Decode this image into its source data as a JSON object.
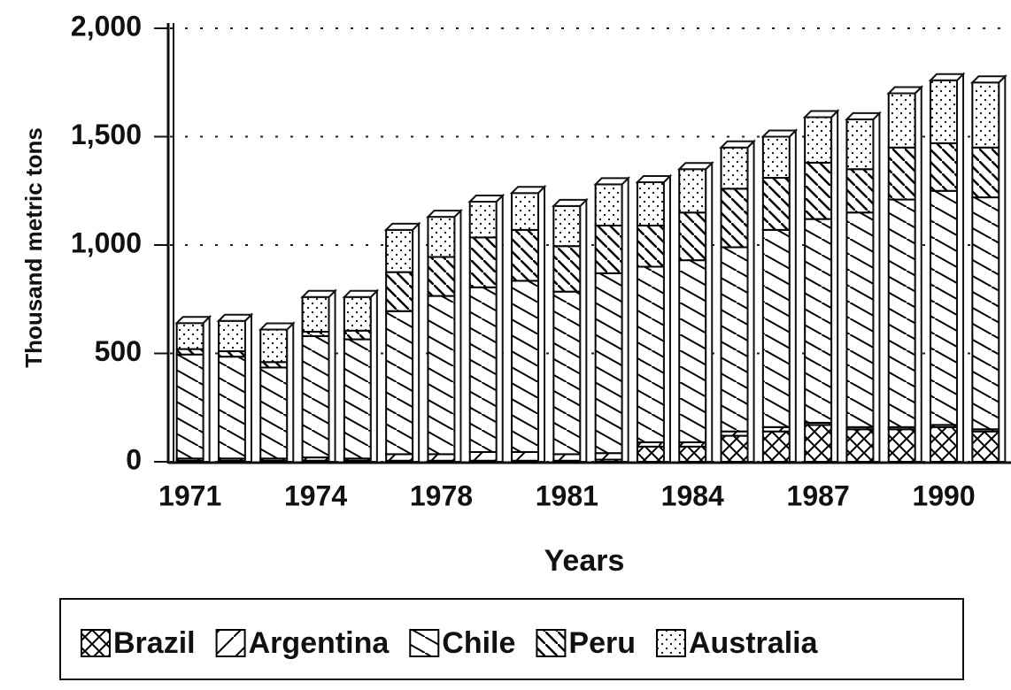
{
  "chart_data": {
    "type": "stacked_bar",
    "x_label": "Years",
    "y_label": "Thousand metric tons",
    "categories": [
      "1971",
      null,
      null,
      "1974",
      null,
      null,
      "1978",
      null,
      null,
      "1981",
      null,
      null,
      "1984",
      null,
      null,
      "1987",
      null,
      null,
      "1990",
      null
    ],
    "series": [
      {
        "name": "Brazil",
        "color": "#000000",
        "pattern": "crosshatch",
        "values": [
          5,
          5,
          5,
          5,
          5,
          5,
          5,
          5,
          5,
          5,
          10,
          70,
          70,
          120,
          140,
          170,
          150,
          150,
          160,
          140
        ]
      },
      {
        "name": "Argentina",
        "color": "#000000",
        "pattern": "forward-diagonal",
        "values": [
          10,
          10,
          10,
          15,
          10,
          30,
          30,
          40,
          40,
          30,
          30,
          20,
          20,
          20,
          20,
          10,
          10,
          10,
          10,
          10
        ]
      },
      {
        "name": "Chile",
        "color": "#000000",
        "pattern": "back-diagonal",
        "values": [
          480,
          470,
          420,
          560,
          550,
          660,
          730,
          760,
          790,
          750,
          830,
          810,
          840,
          850,
          910,
          940,
          990,
          1050,
          1080,
          1070
        ]
      },
      {
        "name": "Peru",
        "color": "#000000",
        "pattern": "dense-back-diagonal",
        "values": [
          25,
          25,
          25,
          20,
          40,
          180,
          180,
          230,
          235,
          210,
          220,
          190,
          220,
          270,
          240,
          260,
          200,
          240,
          220,
          230
        ]
      },
      {
        "name": "Australia",
        "color": "#000000",
        "pattern": "dots",
        "values": [
          120,
          140,
          150,
          160,
          155,
          195,
          185,
          165,
          170,
          185,
          190,
          200,
          200,
          190,
          190,
          210,
          230,
          250,
          290,
          300
        ]
      }
    ],
    "ylim": [
      0,
      2000
    ],
    "yticks": [
      0,
      500,
      {
        "value": 1000,
        "label": "1,000"
      },
      {
        "value": 1500,
        "label": "1,500"
      },
      {
        "value": 2000,
        "label": "2,000"
      }
    ],
    "grid": true,
    "grid_style": "dotted",
    "legend": "bottom"
  }
}
